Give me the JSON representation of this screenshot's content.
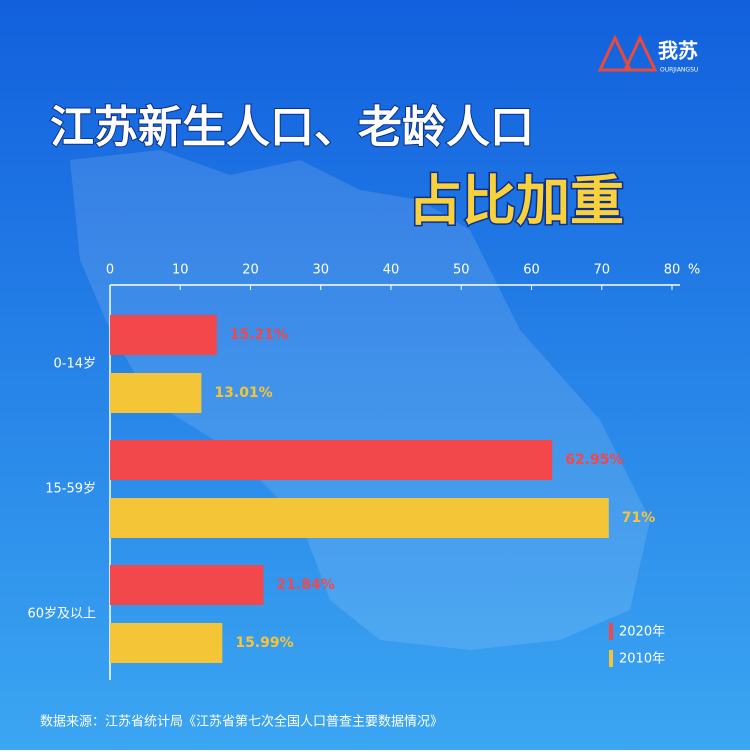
{
  "logo": {
    "name": "我苏",
    "subtitle": "OURJIANGSU"
  },
  "chart_data": {
    "type": "bar",
    "orientation": "horizontal",
    "title": "江苏新生人口、老龄人口",
    "subtitle": "占比加重",
    "categories": [
      "0-14岁",
      "15-59岁",
      "60岁及以上"
    ],
    "series": [
      {
        "name": "2020年",
        "color": "#f2474b",
        "values": [
          15.21,
          62.95,
          21.84
        ],
        "value_labels": [
          "15.21%",
          "62.95%",
          "21.84%"
        ]
      },
      {
        "name": "2010年",
        "color": "#f5c538",
        "values": [
          13.01,
          71,
          15.99
        ],
        "value_labels": [
          "13.01%",
          "71%",
          "15.99%"
        ]
      }
    ],
    "x_unit": "%",
    "xlim": [
      0,
      80
    ],
    "xticks": [
      0,
      10,
      20,
      30,
      40,
      50,
      60,
      70,
      80
    ],
    "legend": "lower right",
    "source": "数据来源：江苏省统计局《江苏省第七次全国人口普查主要数据情况》"
  }
}
